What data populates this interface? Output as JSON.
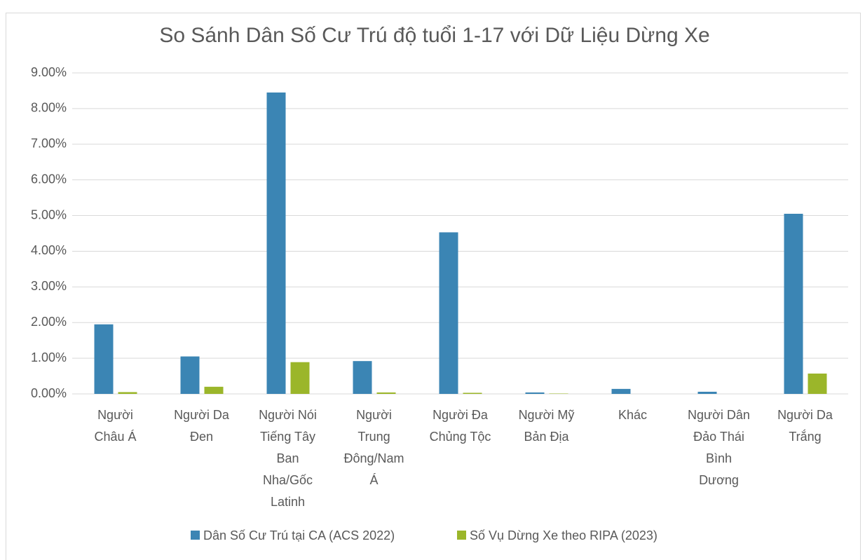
{
  "chart_data": {
    "type": "bar",
    "title": "So Sánh Dân Số Cư Trú độ tuổi 1-17 với Dữ Liệu Dừng Xe",
    "categories": [
      "Người Châu Á",
      "Người Da Đen",
      "Người Nói Tiếng Tây Ban Nha/Gốc Latinh",
      "Người Trung Đông/Nam Á",
      "Người Đa Chủng Tộc",
      "Người Mỹ Bản Địa",
      "Khác",
      "Người Dân Đảo Thái Bình Dương",
      "Người Da Trắng"
    ],
    "series": [
      {
        "name": "Dân Số Cư Trú tại CA (ACS 2022)",
        "color": "#3b85b4",
        "values": [
          1.95,
          1.05,
          8.45,
          0.92,
          4.53,
          0.04,
          0.14,
          0.06,
          5.05
        ]
      },
      {
        "name": "Số Vụ Dừng Xe theo RIPA (2023)",
        "color": "#9bb62a",
        "values": [
          0.05,
          0.2,
          0.89,
          0.04,
          0.03,
          0.01,
          0,
          0,
          0.57
        ]
      }
    ],
    "ylim": [
      0,
      9
    ],
    "yticks": [
      {
        "value": 0,
        "label": "0.00%"
      },
      {
        "value": 1,
        "label": "1.00%"
      },
      {
        "value": 2,
        "label": "2.00%"
      },
      {
        "value": 3,
        "label": "3.00%"
      },
      {
        "value": 4,
        "label": "4.00%"
      },
      {
        "value": 5,
        "label": "5.00%"
      },
      {
        "value": 6,
        "label": "6.00%"
      },
      {
        "value": 7,
        "label": "7.00%"
      },
      {
        "value": 8,
        "label": "8.00%"
      },
      {
        "value": 9,
        "label": "9.00%"
      }
    ],
    "grid": true,
    "legend": "bottom"
  }
}
